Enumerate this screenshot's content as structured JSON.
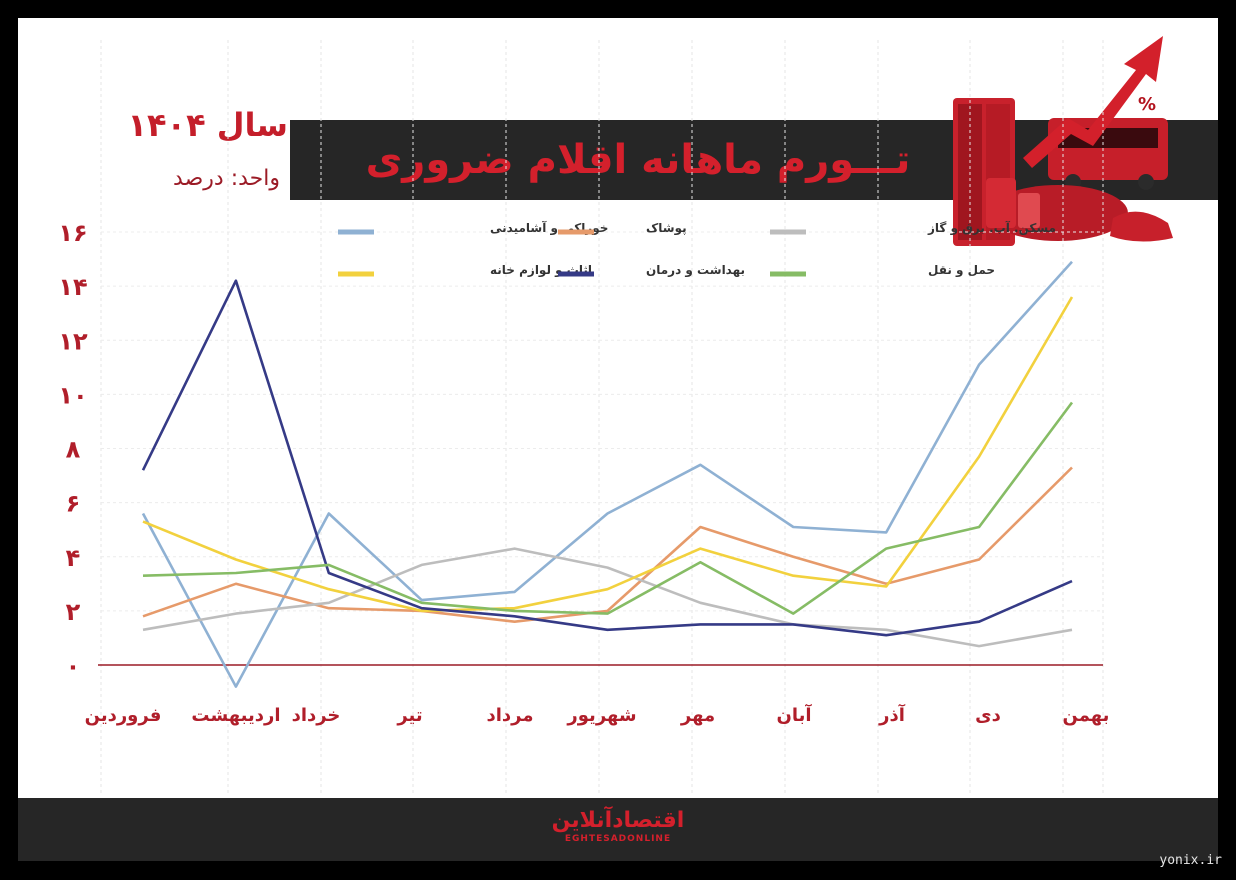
{
  "header": {
    "title": "تـــورم ماهانه اقلام ضروری",
    "year_label": "سال ۱۴۰۴",
    "unit_label": "واحد: درصد"
  },
  "footer": {
    "logo_fa": "اقتصادآنلاین",
    "logo_en": "EGHTESADONLINE"
  },
  "watermark": "yonix.ir",
  "chart_data": {
    "type": "line",
    "title": "تـــورم ماهانه اقلام ضروری",
    "xlabel": "",
    "ylabel": "واحد: درصد",
    "categories": [
      "فروردین",
      "اردیبهشت",
      "خرداد",
      "تیر",
      "مرداد",
      "شهریور",
      "مهر",
      "آبان",
      "آذر",
      "دی",
      "بهمن"
    ],
    "y_ticks": [
      "۰",
      "۲",
      "۴",
      "۶",
      "۸",
      "۱۰",
      "۱۲",
      "۱۴",
      "۱۶"
    ],
    "ylim": [
      0,
      16
    ],
    "grid": true,
    "legend_position": "top",
    "series": [
      {
        "name": "خوراکی و آشامیدنی",
        "color": "#8fb1d3",
        "values": [
          5.6,
          -0.8,
          5.6,
          2.4,
          2.7,
          5.6,
          7.4,
          5.1,
          4.9,
          11.1,
          14.9
        ]
      },
      {
        "name": "پوشاک",
        "color": "#e69a6a",
        "values": [
          1.8,
          3.0,
          2.1,
          2.0,
          1.6,
          2.0,
          5.1,
          4.0,
          3.0,
          3.9,
          7.3
        ]
      },
      {
        "name": "مسکن. آب. برق و گاز",
        "color": "#bdbdbd",
        "values": [
          1.3,
          1.9,
          2.3,
          3.7,
          4.3,
          3.6,
          2.3,
          1.5,
          1.3,
          0.7,
          1.3
        ]
      },
      {
        "name": "اثاث و لوازم خانه",
        "color": "#f2d13e",
        "values": [
          5.3,
          3.9,
          2.8,
          2.0,
          2.1,
          2.8,
          4.3,
          3.3,
          2.9,
          7.7,
          13.6
        ]
      },
      {
        "name": "بهداشت و درمان",
        "color": "#353a86",
        "values": [
          7.2,
          14.2,
          3.4,
          2.1,
          1.8,
          1.3,
          1.5,
          1.5,
          1.1,
          1.6,
          3.1
        ]
      },
      {
        "name": "حمل و نقل",
        "color": "#86bc65",
        "values": [
          3.3,
          3.4,
          3.7,
          2.3,
          2.0,
          1.9,
          3.8,
          1.9,
          4.3,
          5.1,
          9.7
        ]
      }
    ]
  }
}
